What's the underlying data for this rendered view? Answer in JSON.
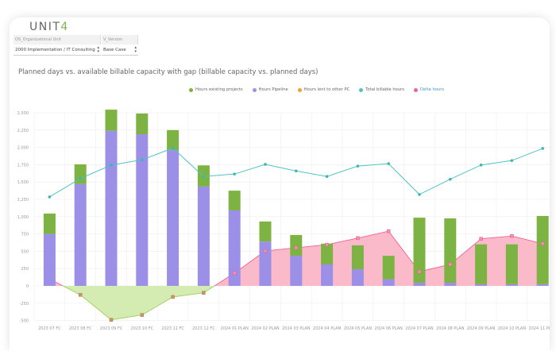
{
  "logo": {
    "text": "UNIT",
    "accent": "4"
  },
  "filters": [
    {
      "label": "OS_Organizational Unit",
      "value": "2000 Implementation / IT Consulting"
    },
    {
      "label": "V_Version",
      "value": "Base Case"
    }
  ],
  "chart_title": "Planned days vs. available billable capacity with gap (billable capacity vs. planned days)",
  "chart_data": {
    "type": "bar",
    "title": "Planned days vs. available billable capacity with gap (billable capacity vs. planned days)",
    "categories": [
      "2023 07 FC",
      "2023 08 FC",
      "2023 09 FC",
      "2023 10 FC",
      "2023 11 FC",
      "2023 12 FC",
      "2024 01 PLAN",
      "2024 02 PLAN",
      "2024 03 PLAN",
      "2024 04 PLAN",
      "2024 05 PLAN",
      "2024 06 PLAN",
      "2024 07 PLAN",
      "2024 08 PLAN",
      "2024 09 PLAN",
      "2024 10 PLAN",
      "2024 11 PLAN"
    ],
    "ylim": [
      -500,
      2500
    ],
    "yticks": [
      -500,
      -250,
      0,
      250,
      500,
      750,
      "1,000",
      "1,250",
      "1,500",
      "1,750",
      "2,000",
      "2,250",
      "2,500"
    ],
    "grid": true,
    "legend_position": "top-center",
    "series": [
      {
        "name": "Hours existing projects",
        "kind": "stacked-bar",
        "color": "#7cb342",
        "values": [
          295,
          285,
          305,
          300,
          290,
          305,
          285,
          290,
          300,
          300,
          345,
          340,
          940,
          930,
          575,
          575,
          985
        ]
      },
      {
        "name": "Hours Pipeline",
        "kind": "stacked-bar",
        "color": "#9b8fe8",
        "values": [
          750,
          1470,
          2240,
          2190,
          1960,
          1435,
          1090,
          640,
          435,
          310,
          240,
          95,
          45,
          45,
          25,
          25,
          25
        ]
      },
      {
        "name": "Hours lent to other PC",
        "kind": "stacked-bar",
        "color": "#f0a030",
        "values": [
          0,
          0,
          0,
          0,
          0,
          0,
          0,
          0,
          0,
          0,
          0,
          0,
          0,
          0,
          0,
          0,
          0
        ]
      },
      {
        "name": "Total billable hours",
        "kind": "line",
        "color": "#4fc3c3",
        "values": [
          1285,
          1550,
          1745,
          1820,
          1990,
          1580,
          1615,
          1755,
          1660,
          1580,
          1730,
          1765,
          1320,
          1540,
          1745,
          1810,
          1985
        ]
      },
      {
        "name": "Delta hours",
        "kind": "area",
        "color": "#f06292",
        "negative_color": "#a5d46a",
        "values": [
          100,
          -130,
          -490,
          -420,
          -160,
          -100,
          185,
          505,
          550,
          595,
          690,
          790,
          205,
          310,
          680,
          720,
          610
        ]
      }
    ]
  }
}
